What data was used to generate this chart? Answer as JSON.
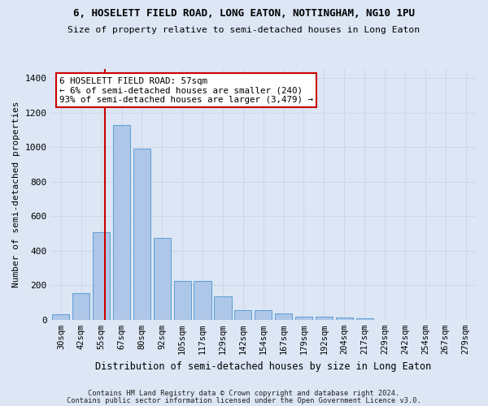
{
  "title1": "6, HOSELETT FIELD ROAD, LONG EATON, NOTTINGHAM, NG10 1PU",
  "title2": "Size of property relative to semi-detached houses in Long Eaton",
  "xlabel": "Distribution of semi-detached houses by size in Long Eaton",
  "ylabel": "Number of semi-detached properties",
  "bar_labels": [
    "30sqm",
    "42sqm",
    "55sqm",
    "67sqm",
    "80sqm",
    "92sqm",
    "105sqm",
    "117sqm",
    "129sqm",
    "142sqm",
    "154sqm",
    "167sqm",
    "179sqm",
    "192sqm",
    "204sqm",
    "217sqm",
    "229sqm",
    "242sqm",
    "254sqm",
    "267sqm",
    "279sqm"
  ],
  "bar_values": [
    30,
    155,
    505,
    1130,
    990,
    475,
    225,
    225,
    135,
    55,
    55,
    35,
    20,
    20,
    12,
    8,
    0,
    0,
    0,
    0,
    0
  ],
  "bar_color": "#aec6e8",
  "bar_edge_color": "#5a9fd4",
  "annotation_text": "6 HOSELETT FIELD ROAD: 57sqm\n← 6% of semi-detached houses are smaller (240)\n93% of semi-detached houses are larger (3,479) →",
  "annotation_box_color": "#ffffff",
  "annotation_box_edge_color": "#cc0000",
  "vline_color": "#cc0000",
  "vline_index": 2.17,
  "ylim": [
    0,
    1450
  ],
  "yticks": [
    0,
    200,
    400,
    600,
    800,
    1000,
    1200,
    1400
  ],
  "grid_color": "#d0d8e8",
  "background_color": "#dce6f5",
  "fig_background_color": "#dce6f5",
  "footer1": "Contains HM Land Registry data © Crown copyright and database right 2024.",
  "footer2": "Contains public sector information licensed under the Open Government Licence v3.0."
}
